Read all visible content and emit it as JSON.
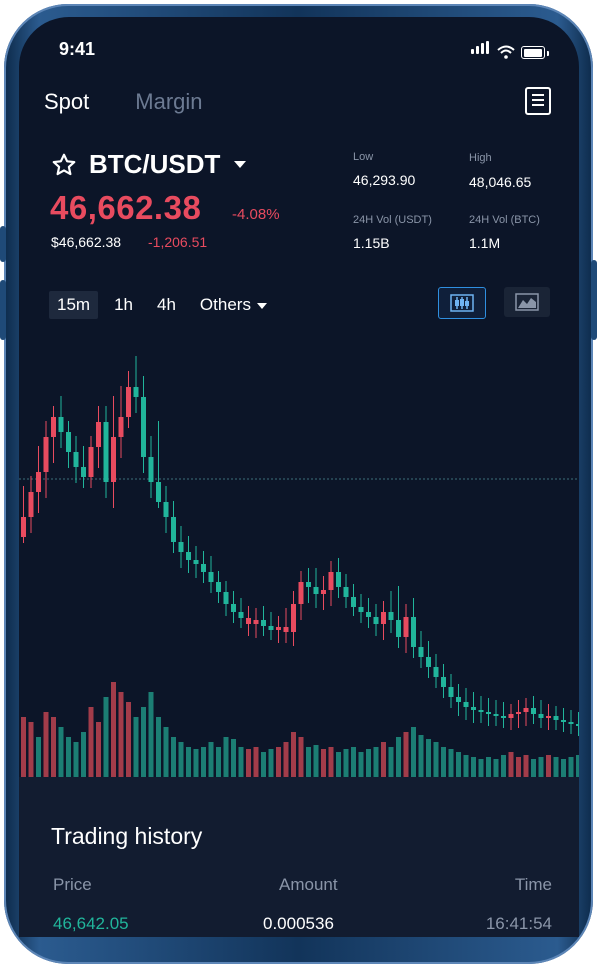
{
  "status": {
    "time": "9:41"
  },
  "tabs": {
    "spot": "Spot",
    "margin": "Margin"
  },
  "pair": {
    "name": "BTC/USDT"
  },
  "price": {
    "last": "46,662.38",
    "change_pct": "-4.08%",
    "usd": "$46,662.38",
    "change_abs": "-1,206.51"
  },
  "stats": {
    "low_label": "Low",
    "low": "46,293.90",
    "high_label": "High",
    "high": "48,046.65",
    "vol_usdt_label": "24H Vol (USDT)",
    "vol_usdt": "1.15B",
    "vol_btc_label": "24H Vol (BTC)",
    "vol_btc": "1.1M"
  },
  "intervals": [
    "15m",
    "1h",
    "4h",
    "Others"
  ],
  "colors": {
    "up": "#21b59b",
    "down": "#e84b5f",
    "accent": "#2f8fe0",
    "background": "#0c1528"
  },
  "history": {
    "title": "Trading history",
    "columns": {
      "price": "Price",
      "amount": "Amount",
      "time": "Time"
    },
    "rows": [
      {
        "price": "46,642.05",
        "amount": "0.000536",
        "time": "16:41:54"
      }
    ]
  },
  "chart_data": {
    "type": "candlestick",
    "candles": [
      [
        195,
        195,
        150,
        175,
        "d"
      ],
      [
        175,
        185,
        140,
        150,
        "d"
      ],
      [
        150,
        165,
        110,
        130,
        "d"
      ],
      [
        130,
        150,
        85,
        95,
        "d"
      ],
      [
        95,
        115,
        70,
        75,
        "d"
      ],
      [
        75,
        100,
        60,
        90,
        "u"
      ],
      [
        90,
        120,
        85,
        110,
        "u"
      ],
      [
        110,
        135,
        100,
        125,
        "u"
      ],
      [
        125,
        140,
        110,
        135,
        "u"
      ],
      [
        135,
        140,
        100,
        105,
        "d"
      ],
      [
        105,
        120,
        70,
        80,
        "d"
      ],
      [
        80,
        150,
        70,
        140,
        "u"
      ],
      [
        140,
        160,
        60,
        95,
        "d"
      ],
      [
        95,
        110,
        50,
        75,
        "d"
      ],
      [
        75,
        80,
        35,
        45,
        "d"
      ],
      [
        45,
        65,
        20,
        55,
        "u"
      ],
      [
        55,
        125,
        40,
        115,
        "u"
      ],
      [
        115,
        150,
        100,
        140,
        "u"
      ],
      [
        140,
        160,
        85,
        160,
        "u"
      ],
      [
        160,
        185,
        150,
        175,
        "u"
      ],
      [
        175,
        205,
        165,
        200,
        "u"
      ],
      [
        200,
        220,
        190,
        210,
        "u"
      ],
      [
        210,
        225,
        200,
        218,
        "u"
      ],
      [
        218,
        230,
        210,
        222,
        "u"
      ],
      [
        222,
        235,
        215,
        230,
        "u"
      ],
      [
        230,
        245,
        220,
        240,
        "u"
      ],
      [
        240,
        255,
        235,
        250,
        "u"
      ],
      [
        250,
        268,
        245,
        262,
        "u"
      ],
      [
        262,
        275,
        255,
        270,
        "u"
      ],
      [
        270,
        280,
        262,
        276,
        "u"
      ],
      [
        276,
        288,
        270,
        282,
        "d"
      ],
      [
        282,
        290,
        272,
        278,
        "d"
      ],
      [
        278,
        288,
        270,
        284,
        "u"
      ],
      [
        284,
        292,
        276,
        288,
        "u"
      ],
      [
        288,
        295,
        280,
        285,
        "d"
      ],
      [
        285,
        295,
        272,
        290,
        "d"
      ],
      [
        290,
        298,
        255,
        262,
        "d"
      ],
      [
        262,
        272,
        235,
        240,
        "d"
      ],
      [
        240,
        255,
        232,
        245,
        "u"
      ],
      [
        245,
        260,
        232,
        252,
        "u"
      ],
      [
        252,
        262,
        240,
        248,
        "d"
      ],
      [
        248,
        258,
        225,
        230,
        "d"
      ],
      [
        230,
        250,
        222,
        245,
        "u"
      ],
      [
        245,
        260,
        238,
        255,
        "u"
      ],
      [
        255,
        268,
        248,
        265,
        "u"
      ],
      [
        265,
        275,
        258,
        270,
        "u"
      ],
      [
        270,
        280,
        262,
        275,
        "u"
      ],
      [
        275,
        288,
        268,
        282,
        "u"
      ],
      [
        282,
        292,
        265,
        270,
        "d"
      ],
      [
        270,
        285,
        255,
        278,
        "u"
      ],
      [
        278,
        300,
        250,
        295,
        "u"
      ],
      [
        295,
        305,
        268,
        275,
        "d"
      ],
      [
        275,
        310,
        262,
        305,
        "u"
      ],
      [
        305,
        320,
        295,
        315,
        "u"
      ],
      [
        315,
        330,
        305,
        325,
        "u"
      ],
      [
        325,
        340,
        318,
        335,
        "u"
      ],
      [
        335,
        350,
        328,
        345,
        "u"
      ],
      [
        345,
        360,
        338,
        355,
        "u"
      ],
      [
        355,
        368,
        348,
        360,
        "u"
      ],
      [
        360,
        372,
        352,
        365,
        "u"
      ],
      [
        365,
        375,
        356,
        368,
        "u"
      ],
      [
        368,
        375,
        360,
        370,
        "u"
      ],
      [
        370,
        378,
        362,
        372,
        "u"
      ],
      [
        372,
        378,
        364,
        374,
        "u"
      ],
      [
        374,
        380,
        366,
        376,
        "u"
      ],
      [
        376,
        382,
        368,
        372,
        "d"
      ],
      [
        372,
        380,
        364,
        370,
        "d"
      ],
      [
        370,
        378,
        362,
        366,
        "d"
      ],
      [
        366,
        376,
        360,
        372,
        "u"
      ],
      [
        372,
        380,
        364,
        376,
        "u"
      ],
      [
        376,
        382,
        368,
        374,
        "d"
      ],
      [
        374,
        382,
        370,
        378,
        "u"
      ],
      [
        378,
        384,
        372,
        380,
        "u"
      ],
      [
        380,
        386,
        374,
        382,
        "u"
      ],
      [
        382,
        388,
        376,
        384,
        "u"
      ]
    ],
    "volumes": [
      [
        60,
        "d"
      ],
      [
        55,
        "d"
      ],
      [
        40,
        "u"
      ],
      [
        65,
        "d"
      ],
      [
        60,
        "d"
      ],
      [
        50,
        "u"
      ],
      [
        40,
        "u"
      ],
      [
        35,
        "u"
      ],
      [
        45,
        "u"
      ],
      [
        70,
        "d"
      ],
      [
        55,
        "d"
      ],
      [
        80,
        "u"
      ],
      [
        95,
        "d"
      ],
      [
        85,
        "d"
      ],
      [
        75,
        "d"
      ],
      [
        60,
        "u"
      ],
      [
        70,
        "u"
      ],
      [
        85,
        "u"
      ],
      [
        60,
        "u"
      ],
      [
        50,
        "u"
      ],
      [
        40,
        "u"
      ],
      [
        35,
        "u"
      ],
      [
        30,
        "u"
      ],
      [
        28,
        "u"
      ],
      [
        30,
        "u"
      ],
      [
        35,
        "u"
      ],
      [
        30,
        "u"
      ],
      [
        40,
        "u"
      ],
      [
        38,
        "u"
      ],
      [
        30,
        "u"
      ],
      [
        28,
        "d"
      ],
      [
        30,
        "d"
      ],
      [
        25,
        "u"
      ],
      [
        28,
        "u"
      ],
      [
        30,
        "d"
      ],
      [
        35,
        "d"
      ],
      [
        45,
        "d"
      ],
      [
        40,
        "d"
      ],
      [
        30,
        "u"
      ],
      [
        32,
        "u"
      ],
      [
        28,
        "d"
      ],
      [
        30,
        "d"
      ],
      [
        25,
        "u"
      ],
      [
        28,
        "u"
      ],
      [
        30,
        "u"
      ],
      [
        25,
        "u"
      ],
      [
        28,
        "u"
      ],
      [
        30,
        "u"
      ],
      [
        35,
        "d"
      ],
      [
        30,
        "u"
      ],
      [
        40,
        "u"
      ],
      [
        45,
        "d"
      ],
      [
        50,
        "u"
      ],
      [
        42,
        "u"
      ],
      [
        38,
        "u"
      ],
      [
        35,
        "u"
      ],
      [
        30,
        "u"
      ],
      [
        28,
        "u"
      ],
      [
        25,
        "u"
      ],
      [
        22,
        "u"
      ],
      [
        20,
        "u"
      ],
      [
        18,
        "u"
      ],
      [
        20,
        "u"
      ],
      [
        18,
        "u"
      ],
      [
        22,
        "u"
      ],
      [
        25,
        "d"
      ],
      [
        20,
        "d"
      ],
      [
        22,
        "d"
      ],
      [
        18,
        "u"
      ],
      [
        20,
        "u"
      ],
      [
        22,
        "d"
      ],
      [
        20,
        "u"
      ],
      [
        18,
        "u"
      ],
      [
        20,
        "u"
      ],
      [
        22,
        "u"
      ]
    ]
  }
}
